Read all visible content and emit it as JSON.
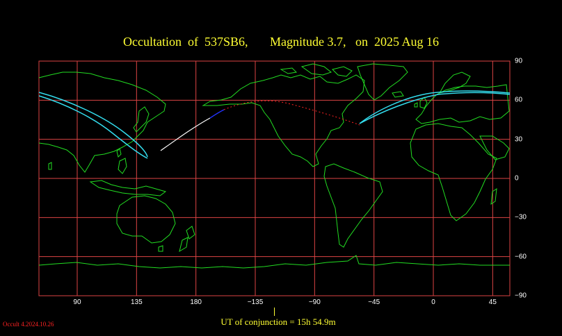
{
  "title": "Occultation  of  537SB6,       Magnitude 3.7,   on  2025 Aug 16",
  "footer": {
    "ut_conjunction": "UT of conjunction = 15h 54.9m",
    "version": "Occult 4.2024.10.26"
  },
  "colors": {
    "coastline": "#22dd22",
    "grid": "#dd4444",
    "path_edge": "#33ddee",
    "centre_line": "#ffffff",
    "centre_blue": "#2233ff",
    "centre_dotted": "#ff2222",
    "title": "#ffff33"
  },
  "map": {
    "projection": "equirectangular",
    "lon_range": [
      61,
      418
    ],
    "lat_range": [
      -90,
      90
    ],
    "lon_ticks": [
      {
        "lon": 90,
        "label": "90"
      },
      {
        "lon": 135,
        "label": "135"
      },
      {
        "lon": 180,
        "label": "180"
      },
      {
        "lon": 225,
        "label": "−135"
      },
      {
        "lon": 270,
        "label": "−90"
      },
      {
        "lon": 315,
        "label": "−45"
      },
      {
        "lon": 360,
        "label": "0"
      },
      {
        "lon": 405,
        "label": "45"
      }
    ],
    "lat_ticks": [
      {
        "lat": 90,
        "label": "90"
      },
      {
        "lat": 60,
        "label": "60"
      },
      {
        "lat": 30,
        "label": "30"
      },
      {
        "lat": 0,
        "label": "0"
      },
      {
        "lat": -30,
        "label": "−30"
      },
      {
        "lat": -60,
        "label": "−60"
      },
      {
        "lat": -90,
        "label": "−90"
      }
    ]
  }
}
